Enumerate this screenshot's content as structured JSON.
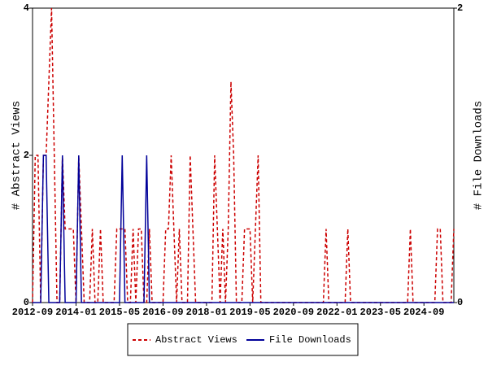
{
  "chart_data": {
    "type": "line",
    "categories": [
      "2012-09",
      null,
      null,
      null,
      null,
      null,
      null,
      null,
      null,
      null,
      null,
      null,
      null,
      null,
      null,
      null,
      "2014-01",
      null,
      null,
      null,
      null,
      null,
      null,
      null,
      null,
      null,
      null,
      null,
      null,
      null,
      null,
      null,
      "2015-05",
      null,
      null,
      null,
      null,
      null,
      null,
      null,
      null,
      null,
      null,
      null,
      null,
      null,
      null,
      null,
      "2016-09",
      null,
      null,
      null,
      null,
      null,
      null,
      null,
      null,
      null,
      null,
      null,
      null,
      null,
      null,
      null,
      "2018-01",
      null,
      null,
      null,
      null,
      null,
      null,
      null,
      null,
      null,
      null,
      null,
      null,
      null,
      null,
      null,
      "2019-05",
      null,
      null,
      null,
      null,
      null,
      null,
      null,
      null,
      null,
      null,
      null,
      null,
      null,
      null,
      null,
      "2020-09",
      null,
      null,
      null,
      null,
      null,
      null,
      null,
      null,
      null,
      null,
      null,
      null,
      null,
      null,
      null,
      "2022-01",
      null,
      null,
      null,
      null,
      null,
      null,
      null,
      null,
      null,
      null,
      null,
      null,
      null,
      null,
      null,
      "2023-05",
      null,
      null,
      null,
      null,
      null,
      null,
      null,
      null,
      null,
      null,
      null,
      null,
      null,
      null,
      null,
      "2024-09",
      null,
      null,
      null,
      null,
      null,
      null,
      null,
      null,
      null,
      null,
      null
    ],
    "series": [
      {
        "name": "Abstract Views",
        "color": "#cc0000",
        "dash": true,
        "values": [
          0,
          2,
          2,
          0,
          2,
          2,
          3,
          4,
          2,
          0,
          0,
          2,
          1,
          1,
          1,
          1,
          0,
          2,
          1,
          0,
          0,
          0,
          1,
          0,
          0,
          1,
          0,
          0,
          0,
          0,
          0,
          1,
          1,
          1,
          1,
          0,
          0,
          1,
          0,
          1,
          1,
          0,
          0,
          1,
          0,
          0,
          0,
          0,
          0,
          1,
          1,
          2,
          1,
          0,
          1,
          0,
          0,
          0,
          2,
          1,
          0,
          0,
          0,
          0,
          0,
          0,
          0,
          2,
          1,
          0,
          1,
          0,
          1,
          3,
          2,
          0,
          0,
          0,
          1,
          1,
          1,
          0,
          1,
          2,
          0,
          0,
          0,
          0,
          0,
          0,
          0,
          0,
          0,
          0,
          0,
          0,
          0,
          0,
          0,
          0,
          0,
          0,
          0,
          0,
          0,
          0,
          0,
          0,
          1,
          0,
          0,
          0,
          0,
          0,
          0,
          0,
          1,
          0,
          0,
          0,
          0,
          0,
          0,
          0,
          0,
          0,
          0,
          0,
          0,
          0,
          0,
          0,
          0,
          0,
          0,
          0,
          0,
          0,
          0,
          1,
          0,
          0,
          0,
          0,
          0,
          0,
          0,
          0,
          0,
          1,
          1,
          0,
          0,
          0,
          0,
          1
        ]
      },
      {
        "name": "File Downloads",
        "color": "#000099",
        "axis": "y2",
        "values": [
          0,
          0,
          0,
          0,
          1,
          1,
          0,
          0,
          0,
          0,
          0,
          1,
          0,
          0,
          0,
          0,
          0,
          1,
          0,
          0,
          0,
          0,
          0,
          0,
          0,
          0,
          0,
          0,
          0,
          0,
          0,
          0,
          0,
          1,
          0,
          0,
          0,
          0,
          0,
          0,
          0,
          0,
          1,
          0,
          0,
          0,
          0,
          0,
          0,
          0,
          0,
          0,
          0,
          0,
          0,
          0,
          0,
          0,
          0,
          0,
          0,
          0,
          0,
          0,
          0,
          0,
          0,
          0,
          0,
          0,
          0,
          0,
          0,
          0,
          0,
          0,
          0,
          0,
          0,
          0,
          0,
          0,
          0,
          0,
          0,
          0,
          0,
          0,
          0,
          0,
          0,
          0,
          0,
          0,
          0,
          0,
          0,
          0,
          0,
          0,
          0,
          0,
          0,
          0,
          0,
          0,
          0,
          0,
          0,
          0,
          0,
          0,
          0,
          0,
          0,
          0,
          0,
          0,
          0,
          0,
          0,
          0,
          0,
          0,
          0,
          0,
          0,
          0,
          0,
          0,
          0,
          0,
          0,
          0,
          0,
          0,
          0,
          0,
          0,
          0,
          0,
          0,
          0,
          0,
          0,
          0,
          0,
          0,
          0,
          0,
          0,
          0,
          0,
          0,
          0,
          0
        ]
      }
    ],
    "ylabel": "# Abstract Views",
    "y2label": "# File Downloads",
    "ylim": [
      0,
      4
    ],
    "yticks": [
      0,
      2,
      4
    ],
    "y2lim": [
      0,
      2
    ],
    "y2ticks": [
      0,
      2
    ]
  }
}
